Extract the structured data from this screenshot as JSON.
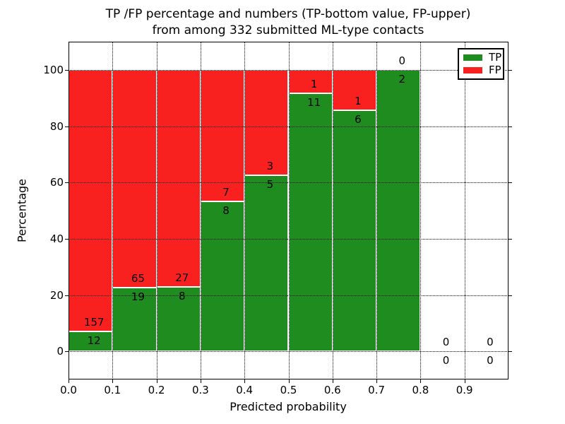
{
  "chart_data": {
    "type": "bar",
    "stacked": true,
    "normalized_to_percent": true,
    "title_line1": "TP /FP percentage and numbers (TP-bottom value, FP-upper)",
    "title_line2": "from among 332 submitted ML-type contacts",
    "xlabel": "Predicted probability",
    "ylabel": "Percentage",
    "total_submitted": 332,
    "bin_width": 0.1,
    "bin_starts": [
      0.0,
      0.1,
      0.2,
      0.3,
      0.4,
      0.5,
      0.6,
      0.7,
      0.8,
      0.9
    ],
    "series": [
      {
        "name": "TP",
        "color": "#1e8c1e",
        "values": [
          12,
          19,
          8,
          8,
          5,
          11,
          6,
          2,
          0,
          0
        ]
      },
      {
        "name": "FP",
        "color": "#f92120",
        "values": [
          157,
          65,
          27,
          7,
          3,
          1,
          1,
          0,
          0,
          0
        ]
      }
    ],
    "bar_edge_color": "#ffffff",
    "xticks": [
      "0.0",
      "0.1",
      "0.2",
      "0.3",
      "0.4",
      "0.5",
      "0.6",
      "0.7",
      "0.8",
      "0.9"
    ],
    "yticks": [
      "0",
      "20",
      "40",
      "60",
      "80",
      "100"
    ],
    "xlim": [
      0.0,
      1.0
    ],
    "ylim": [
      -10,
      110
    ],
    "grid": true,
    "grid_style": "dotted",
    "legend": {
      "position": "upper right",
      "entries": [
        {
          "label": "TP",
          "color": "#1e8c1e"
        },
        {
          "label": "FP",
          "color": "#f92120"
        }
      ]
    }
  }
}
